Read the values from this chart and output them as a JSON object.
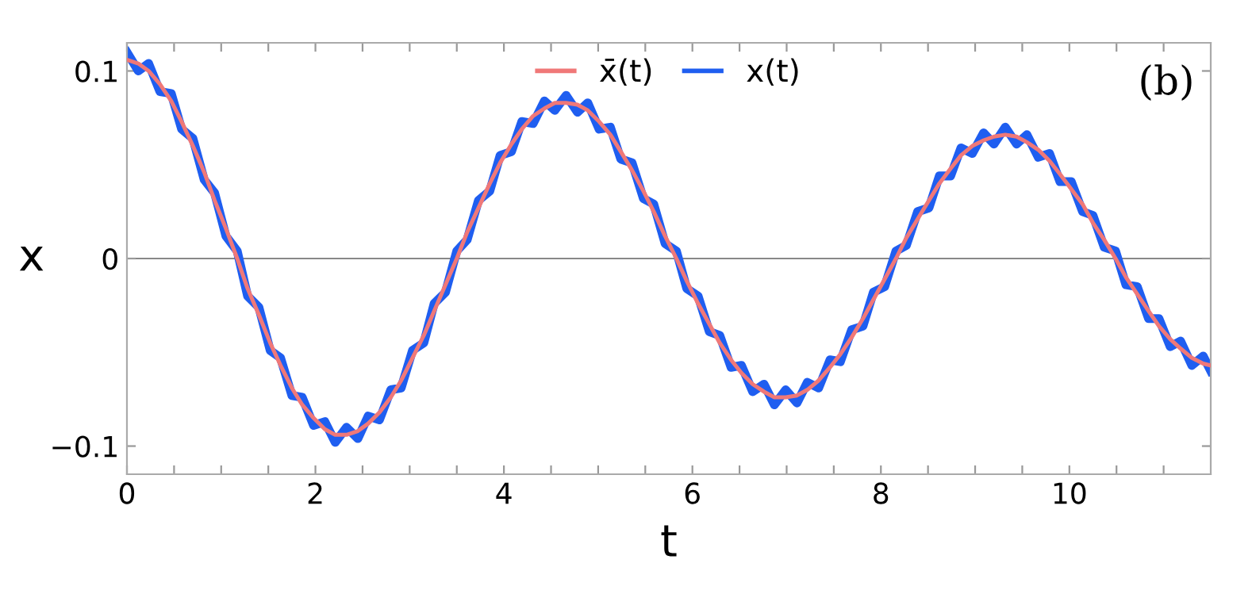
{
  "chart_data": {
    "type": "line",
    "xlabel": "t",
    "ylabel": "x",
    "annotations": [
      "(b)"
    ],
    "legend": "top",
    "grid": false,
    "marker": "none",
    "line_style": "solid",
    "xlim": [
      0,
      11.5
    ],
    "ylim": [
      -0.115,
      0.115
    ],
    "xticks": [
      0,
      {
        "value": 0.5,
        "label": null
      },
      {
        "value": 1,
        "label": null
      },
      {
        "value": 1.5,
        "label": null
      },
      2,
      {
        "value": 2.5,
        "label": null
      },
      {
        "value": 3,
        "label": null
      },
      {
        "value": 3.5,
        "label": null
      },
      4,
      {
        "value": 4.5,
        "label": null
      },
      {
        "value": 5,
        "label": null
      },
      {
        "value": 5.5,
        "label": null
      },
      6,
      {
        "value": 6.5,
        "label": null
      },
      {
        "value": 7,
        "label": null
      },
      {
        "value": 7.5,
        "label": null
      },
      8,
      {
        "value": 8.5,
        "label": null
      },
      {
        "value": 9,
        "label": null
      },
      {
        "value": 9.5,
        "label": null
      },
      10,
      {
        "value": 10.5,
        "label": null
      },
      {
        "value": 11,
        "label": null
      }
    ],
    "yticks": [
      {
        "value": -0.1,
        "label": "−0.1"
      },
      0,
      0.1
    ],
    "ref_lines": [
      {
        "axis": "y",
        "value": 0,
        "color": "#888888"
      }
    ],
    "x": [
      0,
      0.12,
      0.23,
      0.35,
      0.47,
      0.58,
      0.7,
      0.82,
      0.93,
      1.05,
      1.17,
      1.28,
      1.4,
      1.52,
      1.63,
      1.75,
      1.86,
      1.98,
      2.1,
      2.21,
      2.33,
      2.45,
      2.56,
      2.68,
      2.8,
      2.91,
      3.03,
      3.15,
      3.26,
      3.38,
      3.5,
      3.61,
      3.73,
      3.85,
      3.96,
      4.08,
      4.19,
      4.31,
      4.43,
      4.54,
      4.66,
      4.78,
      4.89,
      5.01,
      5.13,
      5.24,
      5.36,
      5.48,
      5.59,
      5.71,
      5.83,
      5.94,
      6.06,
      6.18,
      6.29,
      6.41,
      6.52,
      6.64,
      6.76,
      6.87,
      6.99,
      7.11,
      7.22,
      7.34,
      7.46,
      7.57,
      7.69,
      7.81,
      7.92,
      8.04,
      8.16,
      8.27,
      8.39,
      8.51,
      8.62,
      8.74,
      8.85,
      8.97,
      9.09,
      9.2,
      9.32,
      9.44,
      9.55,
      9.67,
      9.79,
      9.9,
      10.02,
      10.14,
      10.25,
      10.37,
      10.49,
      10.6,
      10.72,
      10.84,
      10.95,
      11.07,
      11.18,
      11.3,
      11.42,
      11.5
    ],
    "series": [
      {
        "name": "x(t)",
        "color": "#1f5ef0",
        "values": [
          0.11,
          0.1,
          0.104,
          0.089,
          0.088,
          0.069,
          0.064,
          0.042,
          0.035,
          0.012,
          0.004,
          -0.02,
          -0.026,
          -0.049,
          -0.053,
          -0.073,
          -0.074,
          -0.089,
          -0.087,
          -0.098,
          -0.09,
          -0.096,
          -0.084,
          -0.086,
          -0.07,
          -0.069,
          -0.049,
          -0.045,
          -0.024,
          -0.018,
          0.004,
          0.01,
          0.031,
          0.036,
          0.055,
          0.057,
          0.073,
          0.072,
          0.084,
          0.079,
          0.087,
          0.078,
          0.083,
          0.069,
          0.07,
          0.053,
          0.051,
          0.032,
          0.029,
          0.008,
          0.004,
          -0.016,
          -0.02,
          -0.039,
          -0.041,
          -0.058,
          -0.057,
          -0.071,
          -0.067,
          -0.078,
          -0.07,
          -0.077,
          -0.066,
          -0.069,
          -0.054,
          -0.055,
          -0.038,
          -0.036,
          -0.018,
          -0.015,
          0.004,
          0.007,
          0.025,
          0.027,
          0.044,
          0.044,
          0.059,
          0.056,
          0.067,
          0.061,
          0.07,
          0.061,
          0.066,
          0.054,
          0.056,
          0.041,
          0.041,
          0.025,
          0.023,
          0.006,
          0.004,
          -0.014,
          -0.015,
          -0.032,
          -0.032,
          -0.047,
          -0.044,
          -0.057,
          -0.052,
          -0.06
        ]
      },
      {
        "name": "x̄(t)",
        "color": "#f07878",
        "values": [
          0.106,
          0.104,
          0.1,
          0.093,
          0.084,
          0.073,
          0.06,
          0.046,
          0.031,
          0.016,
          0,
          -0.016,
          -0.03,
          -0.045,
          -0.057,
          -0.069,
          -0.078,
          -0.085,
          -0.091,
          -0.094,
          -0.094,
          -0.092,
          -0.088,
          -0.082,
          -0.074,
          -0.065,
          -0.053,
          -0.041,
          -0.028,
          -0.014,
          0,
          0.014,
          0.027,
          0.04,
          0.051,
          0.061,
          0.069,
          0.076,
          0.08,
          0.083,
          0.083,
          0.082,
          0.079,
          0.073,
          0.066,
          0.057,
          0.047,
          0.036,
          0.025,
          0.012,
          0,
          -0.012,
          -0.024,
          -0.035,
          -0.045,
          -0.054,
          -0.061,
          -0.067,
          -0.071,
          -0.074,
          -0.074,
          -0.073,
          -0.07,
          -0.065,
          -0.058,
          -0.051,
          -0.042,
          -0.032,
          -0.022,
          -0.011,
          0,
          0.011,
          0.021,
          0.031,
          0.04,
          0.048,
          0.055,
          0.06,
          0.063,
          0.065,
          0.066,
          0.065,
          0.062,
          0.058,
          0.052,
          0.045,
          0.037,
          0.029,
          0.019,
          0.01,
          0,
          -0.01,
          -0.019,
          -0.028,
          -0.036,
          -0.043,
          -0.048,
          -0.053,
          -0.056,
          -0.057
        ]
      }
    ]
  }
}
